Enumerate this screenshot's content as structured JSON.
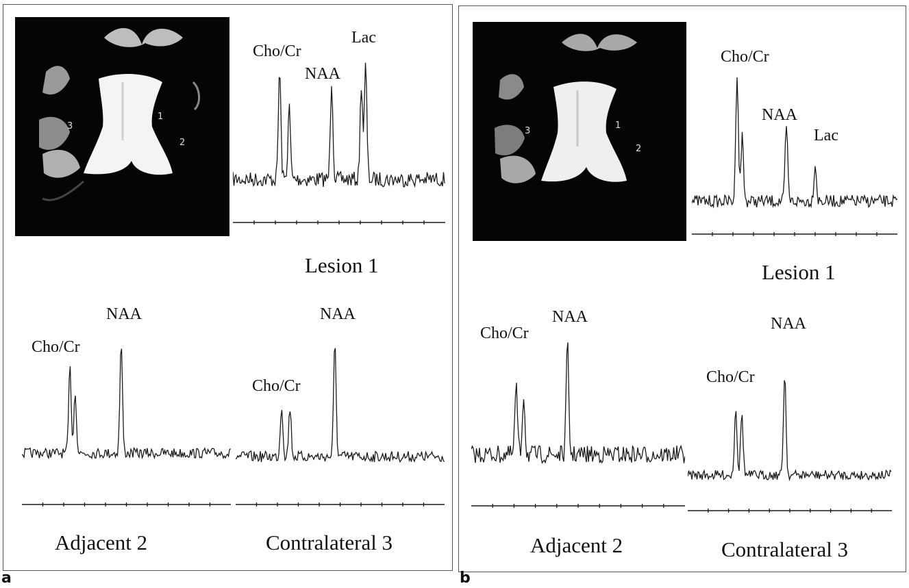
{
  "panels": [
    {
      "letter": "a",
      "mri_region_labels": [
        "1",
        "2",
        "3"
      ],
      "spectra": [
        {
          "caption": "Lesion 1",
          "peaks": [
            "Cho/Cr",
            "NAA",
            "Lac"
          ]
        },
        {
          "caption": "Adjacent 2",
          "peaks": [
            "Cho/Cr",
            "NAA"
          ]
        },
        {
          "caption": "Contralateral 3",
          "peaks": [
            "Cho/Cr",
            "NAA"
          ]
        }
      ]
    },
    {
      "letter": "b",
      "mri_region_labels": [
        "1",
        "2",
        "3"
      ],
      "spectra": [
        {
          "caption": "Lesion 1",
          "peaks": [
            "Cho/Cr",
            "NAA",
            "Lac"
          ]
        },
        {
          "caption": "Adjacent 2",
          "peaks": [
            "Cho/Cr",
            "NAA"
          ]
        },
        {
          "caption": "Contralateral 3",
          "peaks": [
            "Cho/Cr",
            "NAA"
          ]
        }
      ]
    }
  ],
  "colors": {
    "trace": "#1a1a1a",
    "mri_background": "#050505",
    "ventricle": "#f4f4f4"
  }
}
